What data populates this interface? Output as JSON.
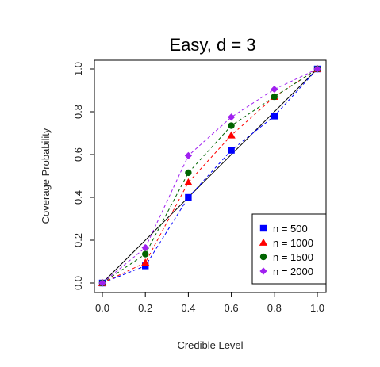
{
  "chart_data": {
    "type": "line",
    "title": "Easy, d = 3",
    "xlabel": "Credible Level",
    "ylabel": "Coverage Probability",
    "xlim": [
      0.0,
      1.0
    ],
    "ylim": [
      0.0,
      1.0
    ],
    "xticks": [
      "0.0",
      "0.2",
      "0.4",
      "0.6",
      "0.8",
      "1.0"
    ],
    "yticks": [
      "0.0",
      "0.2",
      "0.4",
      "0.6",
      "0.8",
      "1.0"
    ],
    "x": [
      0.0,
      0.2,
      0.4,
      0.6,
      0.8,
      1.0
    ],
    "reference_line": {
      "style": "solid",
      "color": "#000000"
    },
    "legend": {
      "position": "bottom-right"
    },
    "grid": false,
    "series": [
      {
        "name": "n = 500",
        "color": "#0000FF",
        "marker": "square",
        "line": "dashed",
        "values": [
          0.0,
          0.08,
          0.4,
          0.62,
          0.78,
          1.0
        ]
      },
      {
        "name": "n = 1000",
        "color": "#FF0000",
        "marker": "triangle",
        "line": "dashed",
        "values": [
          0.0,
          0.095,
          0.47,
          0.69,
          0.87,
          1.0
        ]
      },
      {
        "name": "n = 1500",
        "color": "#006400",
        "marker": "circle",
        "line": "dashed",
        "values": [
          0.0,
          0.135,
          0.515,
          0.735,
          0.87,
          1.0
        ]
      },
      {
        "name": "n = 2000",
        "color": "#A020F0",
        "marker": "diamond",
        "line": "dashed",
        "values": [
          0.0,
          0.165,
          0.595,
          0.775,
          0.905,
          1.0
        ]
      }
    ]
  }
}
